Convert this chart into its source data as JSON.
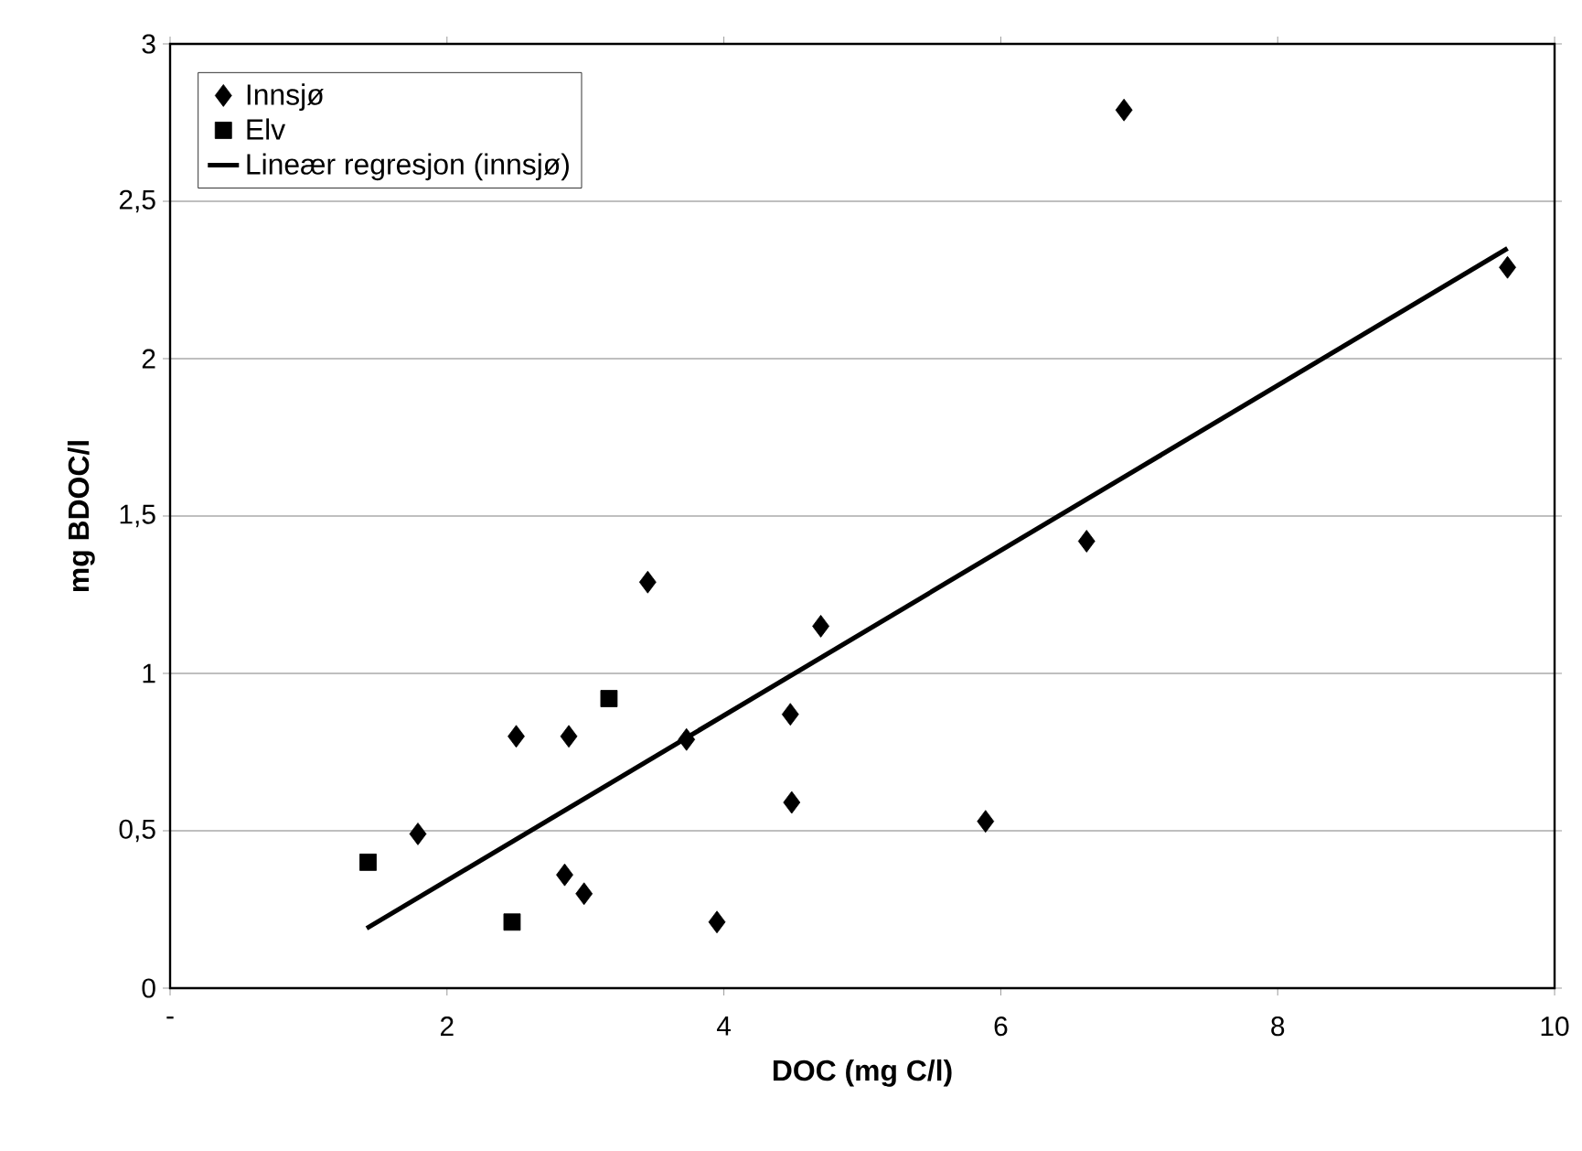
{
  "chart_data": {
    "type": "scatter",
    "xlabel": "DOC (mg C/l)",
    "ylabel": "mg BDOC/l",
    "xlim": [
      0,
      10
    ],
    "xticks": [
      {
        "value": 0,
        "label": "-"
      },
      2,
      4,
      6,
      8,
      10
    ],
    "ylim": [
      0,
      3
    ],
    "yticks": [
      0,
      {
        "value": 0.5,
        "label": "0,5"
      },
      1,
      {
        "value": 1.5,
        "label": "1,5"
      },
      2,
      {
        "value": 2.5,
        "label": "2,5"
      },
      3
    ],
    "grid": "y",
    "legend": "top left",
    "series": [
      {
        "name": "Innsjø",
        "marker": "diamond",
        "color": "#000000",
        "x": [
          1.79,
          2.5,
          2.88,
          3.45,
          2.85,
          2.99,
          3.73,
          4.48,
          4.7,
          4.49,
          3.95,
          5.89,
          6.62,
          6.89,
          9.66
        ],
        "values": [
          0.49,
          0.8,
          0.8,
          1.29,
          0.36,
          0.3,
          0.79,
          0.87,
          1.15,
          0.59,
          0.21,
          0.53,
          1.42,
          2.79,
          2.29
        ]
      },
      {
        "name": "Elv",
        "marker": "square",
        "color": "#000000",
        "x": [
          1.43,
          2.47,
          3.17
        ],
        "values": [
          0.4,
          0.21,
          0.92
        ]
      },
      {
        "name": "Lineær regresjon (innsjø)",
        "type": "line",
        "marker": "none",
        "line_style": "solid",
        "color": "#000000",
        "x": [
          1.42,
          9.66
        ],
        "values": [
          0.19,
          2.35
        ]
      }
    ]
  }
}
